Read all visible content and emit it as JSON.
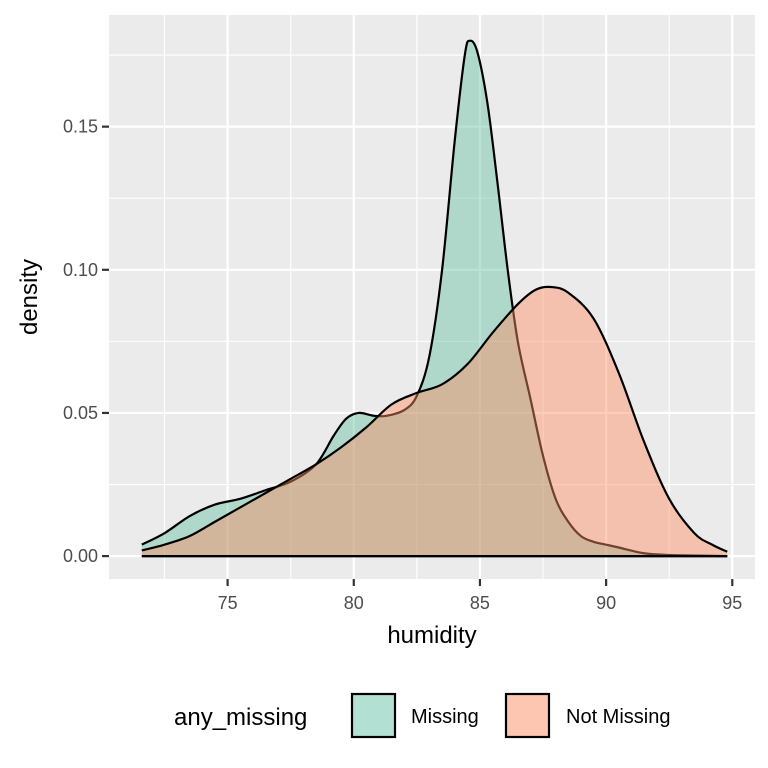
{
  "chart_data": {
    "type": "area",
    "title": "",
    "xlabel": "humidity",
    "ylabel": "density",
    "xlim": [
      70.3,
      95.9
    ],
    "ylim": [
      -0.008,
      0.189
    ],
    "x_ticks": [
      75,
      80,
      85,
      90,
      95
    ],
    "x_tick_labels": [
      "75",
      "80",
      "85",
      "90",
      "95"
    ],
    "y_ticks": [
      0.0,
      0.05,
      0.1,
      0.15
    ],
    "y_tick_labels": [
      "0.00",
      "0.05",
      "0.10",
      "0.15"
    ],
    "grid": true,
    "legend": {
      "title": "any_missing",
      "position": "bottom"
    },
    "series": [
      {
        "name": "Missing",
        "color": "#66c2a5",
        "points": [
          [
            71.6,
            0.004
          ],
          [
            72.5,
            0.008
          ],
          [
            73.5,
            0.014
          ],
          [
            74.5,
            0.018
          ],
          [
            75.5,
            0.02
          ],
          [
            76.5,
            0.023
          ],
          [
            77.5,
            0.026
          ],
          [
            78.5,
            0.032
          ],
          [
            79.2,
            0.042
          ],
          [
            79.7,
            0.048
          ],
          [
            80.2,
            0.05
          ],
          [
            80.8,
            0.049
          ],
          [
            81.3,
            0.049
          ],
          [
            82.0,
            0.051
          ],
          [
            82.5,
            0.056
          ],
          [
            83.0,
            0.07
          ],
          [
            83.5,
            0.1
          ],
          [
            84.0,
            0.145
          ],
          [
            84.4,
            0.175
          ],
          [
            84.6,
            0.18
          ],
          [
            84.9,
            0.176
          ],
          [
            85.3,
            0.158
          ],
          [
            85.7,
            0.13
          ],
          [
            86.1,
            0.1
          ],
          [
            86.5,
            0.075
          ],
          [
            87.0,
            0.055
          ],
          [
            87.5,
            0.035
          ],
          [
            88.0,
            0.02
          ],
          [
            88.5,
            0.012
          ],
          [
            89.0,
            0.007
          ],
          [
            89.5,
            0.005
          ],
          [
            90.0,
            0.004
          ],
          [
            90.5,
            0.003
          ],
          [
            91.5,
            0.001
          ],
          [
            92.5,
            0.0004
          ],
          [
            94.8,
            0.0
          ]
        ]
      },
      {
        "name": "Not Missing",
        "color": "#fc8d62",
        "points": [
          [
            71.6,
            0.002
          ],
          [
            72.5,
            0.004
          ],
          [
            73.5,
            0.007
          ],
          [
            74.5,
            0.012
          ],
          [
            75.5,
            0.017
          ],
          [
            76.5,
            0.022
          ],
          [
            77.5,
            0.027
          ],
          [
            78.5,
            0.032
          ],
          [
            79.5,
            0.038
          ],
          [
            80.5,
            0.045
          ],
          [
            81.5,
            0.053
          ],
          [
            82.5,
            0.057
          ],
          [
            83.5,
            0.06
          ],
          [
            84.5,
            0.067
          ],
          [
            85.5,
            0.078
          ],
          [
            86.5,
            0.088
          ],
          [
            87.2,
            0.093
          ],
          [
            87.8,
            0.094
          ],
          [
            88.5,
            0.092
          ],
          [
            89.5,
            0.083
          ],
          [
            90.5,
            0.064
          ],
          [
            91.5,
            0.04
          ],
          [
            92.5,
            0.02
          ],
          [
            93.5,
            0.008
          ],
          [
            94.2,
            0.004
          ],
          [
            94.8,
            0.0015
          ]
        ]
      }
    ]
  }
}
